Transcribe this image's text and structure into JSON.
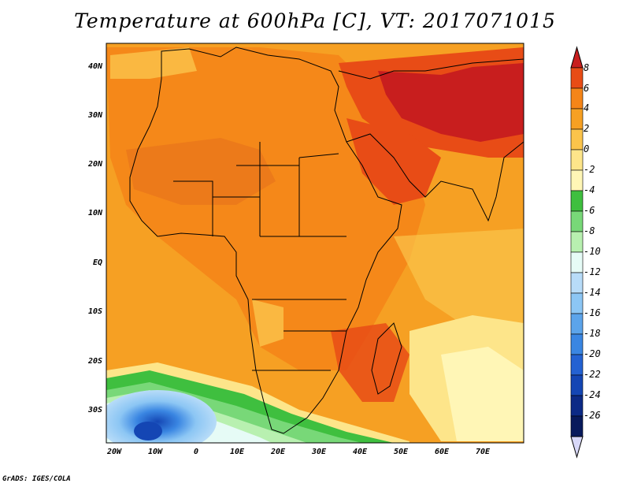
{
  "title": "Temperature at 600hPa [C], VT: 2017071015",
  "credit": "GrADS: IGES/COLA",
  "map": {
    "lat_labels": [
      "40N",
      "30N",
      "20N",
      "10N",
      "EQ",
      "10S",
      "20S",
      "30S"
    ],
    "lon_labels": [
      "20W",
      "10W",
      "0",
      "10E",
      "20E",
      "30E",
      "40E",
      "50E",
      "60E",
      "70E"
    ]
  },
  "colorbar": {
    "labels": [
      "8",
      "6",
      "4",
      "2",
      "0",
      "-2",
      "-4",
      "-6",
      "-8",
      "-10",
      "-12",
      "-14",
      "-16",
      "-18",
      "-20",
      "-22",
      "-24",
      "-26"
    ],
    "colors": [
      "#c81e1e",
      "#e84c16",
      "#f58518",
      "#f6a023",
      "#fbc44b",
      "#fde58a",
      "#fff6b6",
      "#3fbf3f",
      "#78d878",
      "#b8f0b0",
      "#e6fbf6",
      "#b8dcf8",
      "#8cc6f4",
      "#5ca4ea",
      "#3a86e2",
      "#2462d2",
      "#1446b4",
      "#0c2a86",
      "#081a5c",
      "#d8d8f8"
    ]
  }
}
